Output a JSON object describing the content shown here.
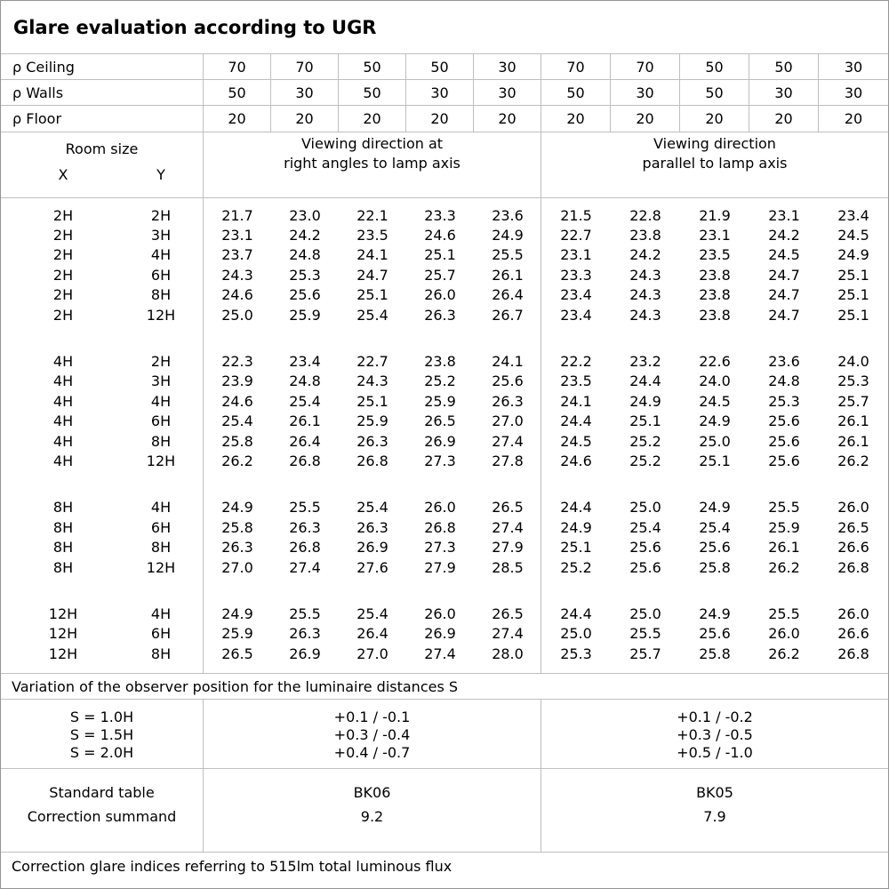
{
  "title": "Glare evaluation according to UGR",
  "reflectances": {
    "rows": [
      {
        "label": "ρ Ceiling",
        "values": [
          "70",
          "70",
          "50",
          "50",
          "30",
          "70",
          "70",
          "50",
          "50",
          "30"
        ]
      },
      {
        "label": "ρ Walls",
        "values": [
          "50",
          "30",
          "50",
          "30",
          "30",
          "50",
          "30",
          "50",
          "30",
          "30"
        ]
      },
      {
        "label": "ρ Floor",
        "values": [
          "20",
          "20",
          "20",
          "20",
          "20",
          "20",
          "20",
          "20",
          "20",
          "20"
        ]
      }
    ]
  },
  "header": {
    "room_size_label": "Room size",
    "x_label": "X",
    "y_label": "Y",
    "group_left": [
      "Viewing direction at",
      "right angles to lamp axis"
    ],
    "group_right": [
      "Viewing direction",
      "parallel to lamp axis"
    ]
  },
  "ugr_table": {
    "blocks": [
      {
        "rows": [
          {
            "x": "2H",
            "y": "2H",
            "left": [
              "21.7",
              "23.0",
              "22.1",
              "23.3",
              "23.6"
            ],
            "right": [
              "21.5",
              "22.8",
              "21.9",
              "23.1",
              "23.4"
            ]
          },
          {
            "x": "2H",
            "y": "3H",
            "left": [
              "23.1",
              "24.2",
              "23.5",
              "24.6",
              "24.9"
            ],
            "right": [
              "22.7",
              "23.8",
              "23.1",
              "24.2",
              "24.5"
            ]
          },
          {
            "x": "2H",
            "y": "4H",
            "left": [
              "23.7",
              "24.8",
              "24.1",
              "25.1",
              "25.5"
            ],
            "right": [
              "23.1",
              "24.2",
              "23.5",
              "24.5",
              "24.9"
            ]
          },
          {
            "x": "2H",
            "y": "6H",
            "left": [
              "24.3",
              "25.3",
              "24.7",
              "25.7",
              "26.1"
            ],
            "right": [
              "23.3",
              "24.3",
              "23.8",
              "24.7",
              "25.1"
            ]
          },
          {
            "x": "2H",
            "y": "8H",
            "left": [
              "24.6",
              "25.6",
              "25.1",
              "26.0",
              "26.4"
            ],
            "right": [
              "23.4",
              "24.3",
              "23.8",
              "24.7",
              "25.1"
            ]
          },
          {
            "x": "2H",
            "y": "12H",
            "left": [
              "25.0",
              "25.9",
              "25.4",
              "26.3",
              "26.7"
            ],
            "right": [
              "23.4",
              "24.3",
              "23.8",
              "24.7",
              "25.1"
            ]
          }
        ]
      },
      {
        "rows": [
          {
            "x": "4H",
            "y": "2H",
            "left": [
              "22.3",
              "23.4",
              "22.7",
              "23.8",
              "24.1"
            ],
            "right": [
              "22.2",
              "23.2",
              "22.6",
              "23.6",
              "24.0"
            ]
          },
          {
            "x": "4H",
            "y": "3H",
            "left": [
              "23.9",
              "24.8",
              "24.3",
              "25.2",
              "25.6"
            ],
            "right": [
              "23.5",
              "24.4",
              "24.0",
              "24.8",
              "25.3"
            ]
          },
          {
            "x": "4H",
            "y": "4H",
            "left": [
              "24.6",
              "25.4",
              "25.1",
              "25.9",
              "26.3"
            ],
            "right": [
              "24.1",
              "24.9",
              "24.5",
              "25.3",
              "25.7"
            ]
          },
          {
            "x": "4H",
            "y": "6H",
            "left": [
              "25.4",
              "26.1",
              "25.9",
              "26.5",
              "27.0"
            ],
            "right": [
              "24.4",
              "25.1",
              "24.9",
              "25.6",
              "26.1"
            ]
          },
          {
            "x": "4H",
            "y": "8H",
            "left": [
              "25.8",
              "26.4",
              "26.3",
              "26.9",
              "27.4"
            ],
            "right": [
              "24.5",
              "25.2",
              "25.0",
              "25.6",
              "26.1"
            ]
          },
          {
            "x": "4H",
            "y": "12H",
            "left": [
              "26.2",
              "26.8",
              "26.8",
              "27.3",
              "27.8"
            ],
            "right": [
              "24.6",
              "25.2",
              "25.1",
              "25.6",
              "26.2"
            ]
          }
        ]
      },
      {
        "rows": [
          {
            "x": "8H",
            "y": "4H",
            "left": [
              "24.9",
              "25.5",
              "25.4",
              "26.0",
              "26.5"
            ],
            "right": [
              "24.4",
              "25.0",
              "24.9",
              "25.5",
              "26.0"
            ]
          },
          {
            "x": "8H",
            "y": "6H",
            "left": [
              "25.8",
              "26.3",
              "26.3",
              "26.8",
              "27.4"
            ],
            "right": [
              "24.9",
              "25.4",
              "25.4",
              "25.9",
              "26.5"
            ]
          },
          {
            "x": "8H",
            "y": "8H",
            "left": [
              "26.3",
              "26.8",
              "26.9",
              "27.3",
              "27.9"
            ],
            "right": [
              "25.1",
              "25.6",
              "25.6",
              "26.1",
              "26.6"
            ]
          },
          {
            "x": "8H",
            "y": "12H",
            "left": [
              "27.0",
              "27.4",
              "27.6",
              "27.9",
              "28.5"
            ],
            "right": [
              "25.2",
              "25.6",
              "25.8",
              "26.2",
              "26.8"
            ]
          }
        ]
      },
      {
        "rows": [
          {
            "x": "12H",
            "y": "4H",
            "left": [
              "24.9",
              "25.5",
              "25.4",
              "26.0",
              "26.5"
            ],
            "right": [
              "24.4",
              "25.0",
              "24.9",
              "25.5",
              "26.0"
            ]
          },
          {
            "x": "12H",
            "y": "6H",
            "left": [
              "25.9",
              "26.3",
              "26.4",
              "26.9",
              "27.4"
            ],
            "right": [
              "25.0",
              "25.5",
              "25.6",
              "26.0",
              "26.6"
            ]
          },
          {
            "x": "12H",
            "y": "8H",
            "left": [
              "26.5",
              "26.9",
              "27.0",
              "27.4",
              "28.0"
            ],
            "right": [
              "25.3",
              "25.7",
              "25.8",
              "26.2",
              "26.8"
            ]
          }
        ]
      }
    ]
  },
  "variation_note": "Variation of the observer position for the luminaire distances S",
  "observer_variation": {
    "rows": [
      {
        "label": "S = 1.0H",
        "right_angles": "+0.1 / -0.1",
        "parallel": "+0.1 / -0.2"
      },
      {
        "label": "S = 1.5H",
        "right_angles": "+0.3 / -0.4",
        "parallel": "+0.3 / -0.5"
      },
      {
        "label": "S = 2.0H",
        "right_angles": "+0.4 / -0.7",
        "parallel": "+0.5 / -1.0"
      }
    ]
  },
  "standard": {
    "rows": [
      {
        "label": "Standard table",
        "right_angles": "BK06",
        "parallel": "BK05"
      },
      {
        "label": "Correction summand",
        "right_angles": "9.2",
        "parallel": "7.9"
      }
    ]
  },
  "footer_note": "Correction glare indices referring to 515lm total luminous flux",
  "colors": {
    "grid_line": "#bfbfbf",
    "outer_border": "#949494",
    "text": "#000000",
    "background": "#ffffff"
  }
}
